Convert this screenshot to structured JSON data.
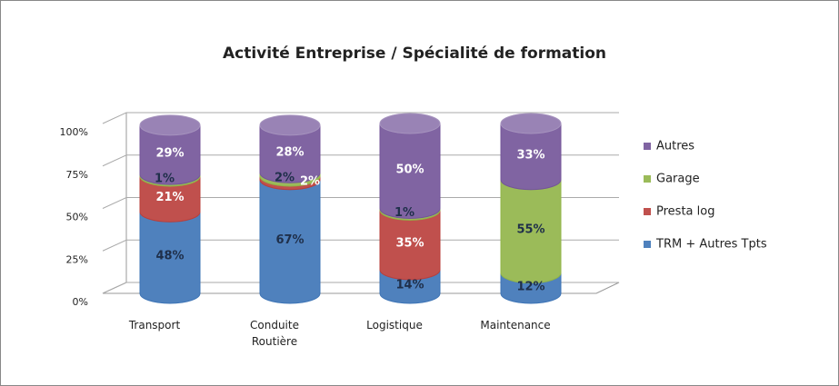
{
  "chart_data": {
    "type": "bar3d_cylinder_stacked",
    "title": "Activité Entreprise / Spécialité de formation",
    "categories": [
      "Transport",
      "Conduite Routière",
      "Logistique",
      "Maintenance"
    ],
    "series": [
      {
        "name": "TRM + Autres Tpts",
        "color": "#4f81bd",
        "values": [
          48,
          67,
          14,
          12
        ],
        "value_labels": [
          "48%",
          "67%",
          "14%",
          "12%"
        ]
      },
      {
        "name": "Presta log",
        "color": "#c0504d",
        "values": [
          21,
          2,
          35,
          null
        ],
        "value_labels": [
          "21%",
          "2%",
          "35%",
          null
        ]
      },
      {
        "name": "Garage",
        "color": "#9bbb59",
        "values": [
          1,
          2,
          1,
          55
        ],
        "value_labels": [
          "1%",
          "2%",
          "1%",
          "55%"
        ]
      },
      {
        "name": "Autres",
        "color": "#8064a2",
        "values": [
          29,
          28,
          50,
          33
        ],
        "value_labels": [
          "29%",
          "28%",
          "50%",
          "33%"
        ]
      }
    ],
    "ylim": [
      0,
      100
    ],
    "yticks": [
      {
        "value": 0,
        "label": "0%"
      },
      {
        "value": 25,
        "label": "25%"
      },
      {
        "value": 50,
        "label": "50%"
      },
      {
        "value": 75,
        "label": "75%"
      },
      {
        "value": 100,
        "label": "100%"
      }
    ],
    "grid": true,
    "legend": "right"
  }
}
